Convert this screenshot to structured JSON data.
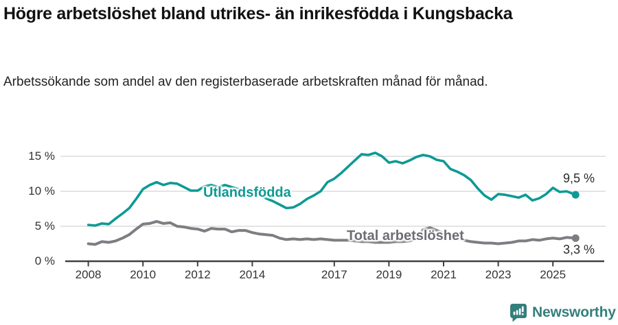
{
  "header": {
    "title": "Högre arbetslöshet bland utrikes- än inrikesfödda i Kungsbacka",
    "subtitle": "Arbetssökande som andel av den registerbaserade arbetskraften månad för månad."
  },
  "chart_data": {
    "type": "line",
    "title": "Högre arbetslöshet bland utrikes- än inrikesfödda i Kungsbacka",
    "xlabel": "",
    "ylabel": "%",
    "grid": "horizontal",
    "legend_position": "inline-labels",
    "ylim": [
      0,
      16.5
    ],
    "xlim": [
      2007.2,
      2026.3
    ],
    "y_ticks": [
      0,
      5,
      10,
      15
    ],
    "y_tick_labels": [
      "0 %",
      "5 %",
      "10 %",
      "15 %"
    ],
    "x_tick_years": [
      2008,
      2010,
      2012,
      2014,
      2017,
      2019,
      2021,
      2023,
      2025
    ],
    "x_tick_labels": [
      "2008",
      "2010",
      "2012",
      "2014",
      "2017",
      "2019",
      "2021",
      "2023",
      "2025"
    ],
    "x": [
      2008,
      2008.25,
      2008.5,
      2008.75,
      2009,
      2009.25,
      2009.5,
      2009.75,
      2010,
      2010.25,
      2010.5,
      2010.75,
      2011,
      2011.25,
      2011.5,
      2011.75,
      2012,
      2012.25,
      2012.5,
      2012.75,
      2013,
      2013.25,
      2013.5,
      2013.75,
      2014,
      2014.25,
      2014.5,
      2014.75,
      2015,
      2015.25,
      2015.5,
      2015.75,
      2016,
      2016.25,
      2016.5,
      2016.75,
      2017,
      2017.25,
      2017.5,
      2017.75,
      2018,
      2018.25,
      2018.5,
      2018.75,
      2019,
      2019.25,
      2019.5,
      2019.75,
      2020,
      2020.25,
      2020.5,
      2020.75,
      2021,
      2021.25,
      2021.5,
      2021.75,
      2022,
      2022.25,
      2022.5,
      2022.75,
      2023,
      2023.25,
      2023.5,
      2023.75,
      2024,
      2024.25,
      2024.5,
      2024.75,
      2025,
      2025.25,
      2025.5,
      2025.83
    ],
    "series": [
      {
        "name": "Utlandsfödda",
        "color": "#0d9a94",
        "end_label": "9,5 %",
        "end_value": 9.5,
        "values": [
          5.2,
          5.1,
          5.4,
          5.3,
          6.1,
          6.8,
          7.6,
          8.9,
          10.3,
          10.9,
          11.3,
          10.9,
          11.2,
          11.1,
          10.6,
          10.1,
          10.1,
          10.7,
          10.9,
          10.6,
          10.9,
          10.6,
          10.3,
          10.2,
          10.0,
          9.6,
          9.0,
          8.6,
          8.1,
          7.6,
          7.7,
          8.2,
          8.9,
          9.4,
          10.0,
          11.3,
          11.8,
          12.6,
          13.5,
          14.4,
          15.3,
          15.2,
          15.5,
          15.0,
          14.1,
          14.3,
          14.0,
          14.4,
          14.9,
          15.2,
          15.0,
          14.5,
          14.3,
          13.2,
          12.8,
          12.3,
          11.6,
          10.4,
          9.4,
          8.8,
          9.6,
          9.5,
          9.3,
          9.1,
          9.5,
          8.7,
          9.0,
          9.6,
          10.5,
          9.9,
          10.0,
          9.5
        ]
      },
      {
        "name": "Total arbetslöshet",
        "color": "#7d7d82",
        "end_label": "3,3 %",
        "end_value": 3.3,
        "values": [
          2.5,
          2.4,
          2.8,
          2.7,
          2.9,
          3.3,
          3.8,
          4.6,
          5.3,
          5.4,
          5.7,
          5.4,
          5.5,
          5.0,
          4.9,
          4.7,
          4.6,
          4.3,
          4.7,
          4.6,
          4.6,
          4.2,
          4.4,
          4.4,
          4.1,
          3.9,
          3.8,
          3.7,
          3.3,
          3.1,
          3.2,
          3.1,
          3.2,
          3.1,
          3.2,
          3.1,
          3.0,
          3.0,
          3.0,
          2.9,
          2.8,
          2.8,
          2.7,
          2.7,
          2.7,
          2.8,
          2.8,
          2.9,
          3.2,
          4.5,
          4.8,
          4.4,
          4.0,
          3.6,
          3.3,
          3.0,
          2.8,
          2.7,
          2.6,
          2.6,
          2.5,
          2.6,
          2.7,
          2.9,
          2.9,
          3.1,
          3.0,
          3.2,
          3.3,
          3.2,
          3.4,
          3.3
        ]
      }
    ],
    "colors": {
      "gridline": "#dcdcdc",
      "axis": "#3f3f3f",
      "tick_label": "#333333",
      "series_label_gray": "#6d6d72",
      "end_label": "#2b2b2b"
    }
  },
  "footer": {
    "brand": "Newsworthy",
    "logo_icon": "newsworthy-speech-bubble-bar-chart-icon",
    "brand_color": "#347f7c"
  }
}
